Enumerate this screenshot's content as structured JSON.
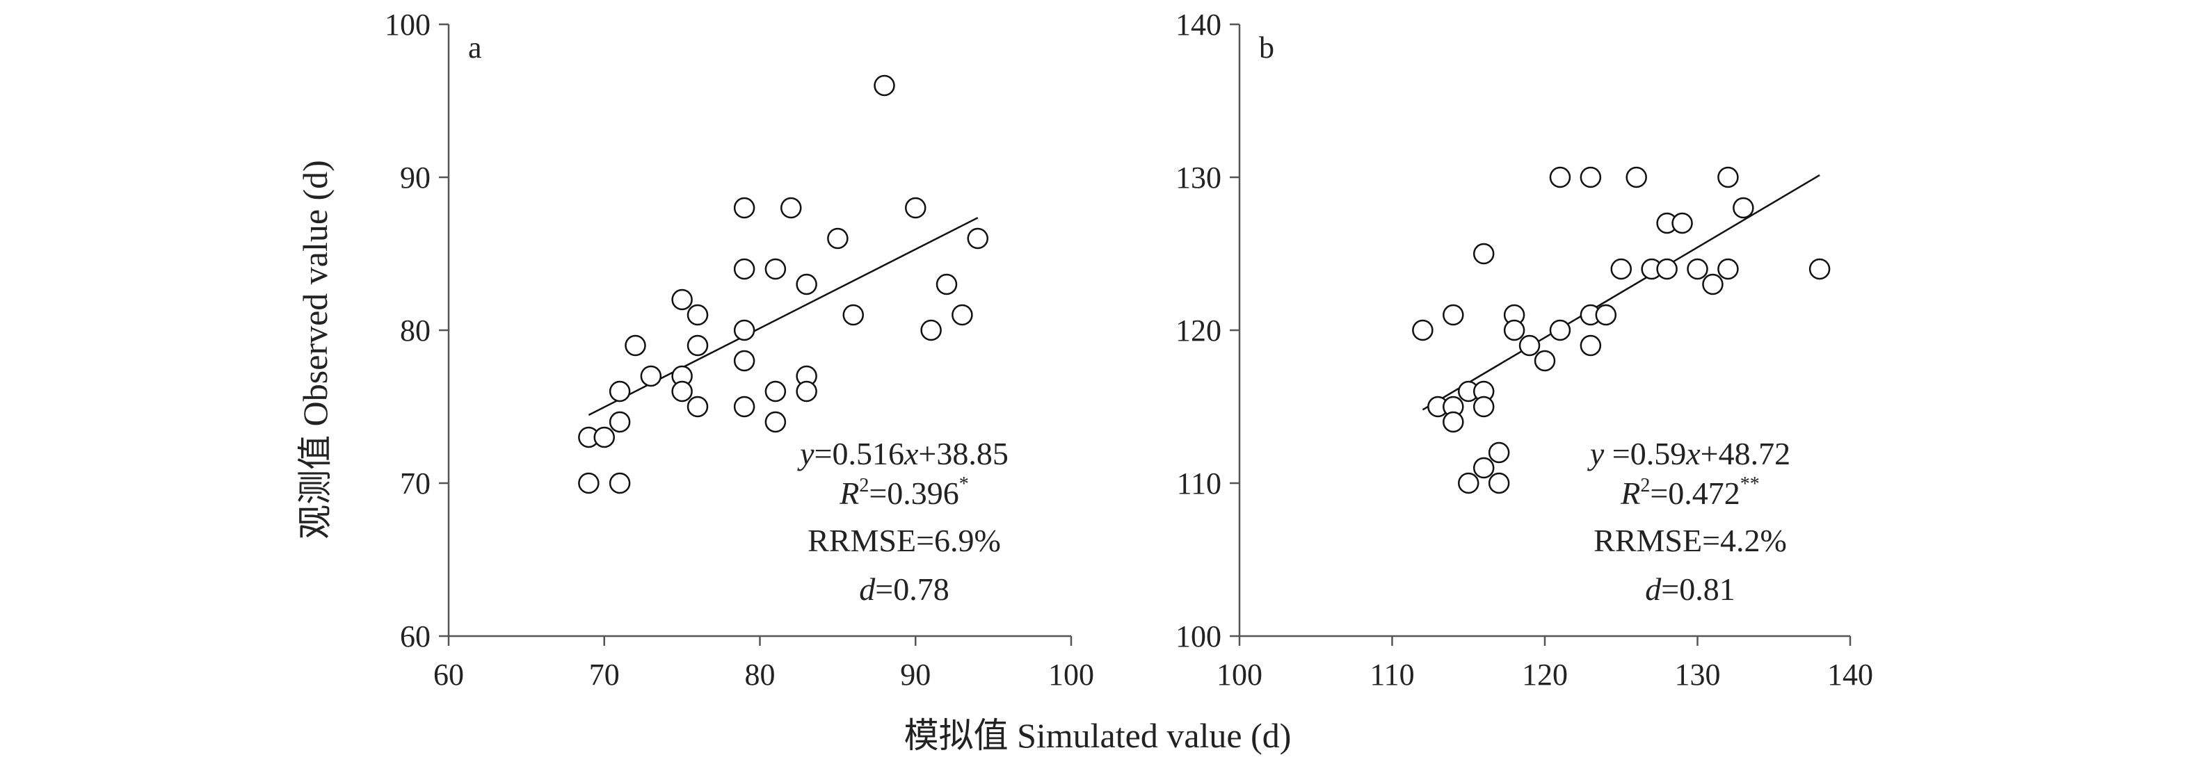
{
  "figure": {
    "xlabel": "模拟值 Simulated value (d)",
    "ylabel": "观测值 Observed value (d)"
  },
  "chart_data": [
    {
      "type": "scatter",
      "panel_label": "a",
      "xlim": [
        60,
        100
      ],
      "ylim": [
        60,
        100
      ],
      "x_ticks": [
        "60",
        "70",
        "80",
        "90",
        "100"
      ],
      "y_ticks": [
        "60",
        "70",
        "80",
        "90",
        "100"
      ],
      "points": [
        [
          69,
          73
        ],
        [
          69,
          70
        ],
        [
          70,
          73
        ],
        [
          71,
          76
        ],
        [
          71,
          74
        ],
        [
          71,
          70
        ],
        [
          72,
          79
        ],
        [
          73,
          77
        ],
        [
          75,
          82
        ],
        [
          75,
          77
        ],
        [
          75,
          76
        ],
        [
          76,
          81
        ],
        [
          76,
          79
        ],
        [
          76,
          75
        ],
        [
          79,
          88
        ],
        [
          79,
          84
        ],
        [
          79,
          80
        ],
        [
          79,
          78
        ],
        [
          79,
          75
        ],
        [
          81,
          84
        ],
        [
          81,
          76
        ],
        [
          81,
          74
        ],
        [
          82,
          88
        ],
        [
          83,
          83
        ],
        [
          83,
          77
        ],
        [
          83,
          76
        ],
        [
          85,
          86
        ],
        [
          86,
          81
        ],
        [
          88,
          96
        ],
        [
          90,
          88
        ],
        [
          91,
          80
        ],
        [
          92,
          83
        ],
        [
          93,
          81
        ],
        [
          94,
          86
        ]
      ],
      "fit": {
        "slope": 0.516,
        "intercept": 38.85,
        "x_range": [
          69,
          94
        ]
      },
      "stats": {
        "eq_y": "y",
        "eq_rest": "=0.516",
        "eq_x": "x",
        "eq_tail": "+38.85",
        "r2_r": "R",
        "r2_sup": "2",
        "r2_value": "=0.396",
        "r2_sig": "*",
        "rrmse": "RRMSE=6.9%",
        "d_letter": "d",
        "d_value": "=0.78"
      }
    },
    {
      "type": "scatter",
      "panel_label": "b",
      "xlim": [
        100,
        140
      ],
      "ylim": [
        100,
        140
      ],
      "x_ticks": [
        "100",
        "110",
        "120",
        "130",
        "140"
      ],
      "y_ticks": [
        "100",
        "110",
        "120",
        "130",
        "140"
      ],
      "points": [
        [
          112,
          120
        ],
        [
          113,
          115
        ],
        [
          114,
          121
        ],
        [
          114,
          115
        ],
        [
          114,
          114
        ],
        [
          115,
          116
        ],
        [
          115,
          110
        ],
        [
          116,
          125
        ],
        [
          116,
          116
        ],
        [
          116,
          115
        ],
        [
          116,
          111
        ],
        [
          117,
          112
        ],
        [
          117,
          110
        ],
        [
          118,
          121
        ],
        [
          118,
          120
        ],
        [
          119,
          119
        ],
        [
          120,
          118
        ],
        [
          121,
          130
        ],
        [
          121,
          120
        ],
        [
          123,
          130
        ],
        [
          123,
          121
        ],
        [
          123,
          119
        ],
        [
          124,
          121
        ],
        [
          125,
          124
        ],
        [
          126,
          130
        ],
        [
          127,
          124
        ],
        [
          128,
          127
        ],
        [
          128,
          124
        ],
        [
          129,
          127
        ],
        [
          130,
          124
        ],
        [
          131,
          123
        ],
        [
          132,
          130
        ],
        [
          132,
          124
        ],
        [
          133,
          128
        ],
        [
          138,
          124
        ]
      ],
      "fit": {
        "slope": 0.59,
        "intercept": 48.72,
        "x_range": [
          112,
          138
        ]
      },
      "stats": {
        "eq_y": "y",
        "eq_rest": " =0.59",
        "eq_x": "x",
        "eq_tail": "+48.72",
        "r2_r": "R",
        "r2_sup": "2",
        "r2_value": "=0.472",
        "r2_sig": "**",
        "rrmse": "RRMSE=4.2%",
        "d_letter": "d",
        "d_value": "=0.81"
      }
    }
  ]
}
